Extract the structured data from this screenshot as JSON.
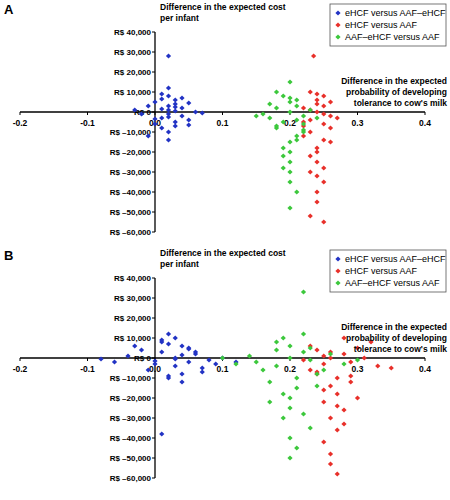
{
  "chart_data": [
    {
      "type": "scatter",
      "title": "A",
      "x_label": "Difference in the expected probability of developing tolerance to cow's milk",
      "y_label": "Difference in the expected cost per infant",
      "xlim": [
        -0.2,
        0.4
      ],
      "ylim": [
        -60000,
        40000
      ],
      "xticks": [
        -0.2,
        -0.1,
        {
          "value": 0,
          "label": "0.0"
        },
        0.1,
        0.2,
        0.3,
        0.4
      ],
      "yticks": [
        {
          "value": 40000,
          "label": "R$ 40,000"
        },
        {
          "value": 30000,
          "label": "R$ 30,000"
        },
        {
          "value": 20000,
          "label": "R$ 20,000"
        },
        {
          "value": 10000,
          "label": "R$ 10,000"
        },
        {
          "value": 0,
          "label": "R$ 0"
        },
        {
          "value": -10000,
          "label": "R$ –10,000"
        },
        {
          "value": -20000,
          "label": "R$ –20,000"
        },
        {
          "value": -30000,
          "label": "R$ –30,000"
        },
        {
          "value": -40000,
          "label": "R$ –40,000"
        },
        {
          "value": -50000,
          "label": "R$ –50,000"
        },
        {
          "value": -60000,
          "label": "R$ –60,000"
        }
      ],
      "legend": "top right",
      "marker": "diamond",
      "series": [
        {
          "name": "eHCF versus AAF–eHCF",
          "color": "#2233c4",
          "x": [
            0.02,
            0.01,
            0.03,
            0.0,
            0.04,
            0.02,
            0.05,
            -0.01,
            0.03,
            0.01,
            0.02,
            0.06,
            0.0,
            0.04,
            -0.02,
            0.03,
            0.02,
            0.01,
            0.05,
            0.02,
            0.03,
            0.0,
            0.04,
            0.01,
            0.02,
            0.03,
            -0.01,
            0.05,
            0.02,
            0.01,
            0.03,
            0.02,
            0.07,
            -0.03,
            0.02
          ],
          "values": [
            1000,
            -3000,
            4000,
            -6000,
            2000,
            -1000,
            -4000,
            3000,
            6000,
            -8000,
            8000,
            0,
            5000,
            -2000,
            -1000,
            -5000,
            -10000,
            1500,
            4500,
            28000,
            -7000,
            -3500,
            7000,
            9000,
            3000,
            500,
            -12000,
            -6500,
            -14000,
            6500,
            2500,
            12000,
            -500,
            1000,
            -2500
          ]
        },
        {
          "name": "eHCF versus AAF",
          "color": "#e8302a",
          "x": [
            0.24,
            0.23,
            0.25,
            0.22,
            0.26,
            0.24,
            0.23,
            0.25,
            0.27,
            0.24,
            0.22,
            0.25,
            0.23,
            0.26,
            0.24,
            0.25,
            0.23,
            0.24,
            0.26,
            0.22,
            0.25,
            0.24,
            0.23,
            0.25,
            0.24,
            0.26,
            0.23,
            0.24,
            0.25,
            0.24,
            0.235,
            0.22,
            0.25,
            0.24,
            0.23
          ],
          "values": [
            0,
            -4000,
            3000,
            -7000,
            -2000,
            6000,
            -10000,
            -14000,
            -3000,
            -18000,
            2000,
            8000,
            -22000,
            -8000,
            -25000,
            -1000,
            -30000,
            4000,
            5000,
            -12000,
            -35000,
            -40000,
            10000,
            -6000,
            -45000,
            -15000,
            -52000,
            -20000,
            -28000,
            9000,
            28000,
            -5000,
            -55000,
            -32000,
            1000
          ]
        },
        {
          "name": "AAF–eHCF versus AAF",
          "color": "#3cc83c",
          "x": [
            0.2,
            0.19,
            0.21,
            0.18,
            0.22,
            0.2,
            0.17,
            0.21,
            0.19,
            0.23,
            0.2,
            0.18,
            0.22,
            0.16,
            0.2,
            0.21,
            0.19,
            0.2,
            0.22,
            0.18,
            0.21,
            0.2,
            0.19,
            0.24,
            0.17,
            0.2,
            0.21,
            0.19,
            0.2,
            0.22,
            0.18,
            0.2,
            0.15,
            0.21,
            0.2
          ],
          "values": [
            0,
            -5000,
            3000,
            -8000,
            -2000,
            5000,
            -3000,
            -12000,
            8000,
            1000,
            -15000,
            2000,
            -10000,
            -1000,
            -20000,
            6000,
            -18000,
            -25000,
            -6000,
            10000,
            -4000,
            -30000,
            -22000,
            -3000,
            4000,
            -35000,
            -14000,
            -28000,
            -48000,
            -9000,
            -7000,
            15000,
            -2000,
            -40000,
            7000
          ]
        }
      ]
    },
    {
      "type": "scatter",
      "title": "B",
      "x_label": "Difference in the expected probability of developing tolerance to cow's milk",
      "y_label": "Difference in the expected cost per infant",
      "xlim": [
        -0.2,
        0.4
      ],
      "ylim": [
        -60000,
        40000
      ],
      "xticks": [
        -0.2,
        -0.1,
        {
          "value": 0,
          "label": "0.0"
        },
        0.1,
        0.2,
        0.3,
        0.4
      ],
      "yticks": [
        {
          "value": 40000,
          "label": "R$ 40,000"
        },
        {
          "value": 30000,
          "label": "R$ 30,000"
        },
        {
          "value": 20000,
          "label": "R$ 20,000"
        },
        {
          "value": 10000,
          "label": "R$ 10,000"
        },
        {
          "value": 0,
          "label": "R$ 0"
        },
        {
          "value": -10000,
          "label": "R$ –10,000"
        },
        {
          "value": -20000,
          "label": "R$ –20,000"
        },
        {
          "value": -30000,
          "label": "R$ –30,000"
        },
        {
          "value": -40000,
          "label": "R$ –40,000"
        },
        {
          "value": -50000,
          "label": "R$ –50,000"
        },
        {
          "value": -60000,
          "label": "R$ –60,000"
        }
      ],
      "legend": "top right",
      "marker": "diamond",
      "series": [
        {
          "name": "eHCF versus AAF–eHCF",
          "color": "#2233c4",
          "x": [
            0.03,
            0.01,
            0.05,
            -0.02,
            0.07,
            0.02,
            0.04,
            -0.04,
            0.06,
            0.0,
            0.08,
            0.03,
            -0.06,
            0.05,
            0.02,
            0.1,
            -0.01,
            0.04,
            0.01,
            0.06,
            0.03,
            -0.03,
            0.09,
            0.02,
            0.04,
            0.0,
            0.07,
            0.03,
            0.01,
            0.05,
            -0.08,
            0.12,
            0.02,
            0.01,
            0.04
          ],
          "values": [
            0,
            3000,
            -2000,
            4000,
            -5000,
            7000,
            -8000,
            1000,
            2000,
            -3000,
            -1000,
            10000,
            -2000,
            5000,
            -10000,
            0,
            -6000,
            -12000,
            8000,
            3000,
            -4000,
            6000,
            -3000,
            12000,
            1500,
            -1500,
            -7000,
            -500,
            -38000,
            4500,
            -500,
            -2000,
            -9000,
            9000,
            6000
          ]
        },
        {
          "name": "eHCF versus AAF",
          "color": "#e8302a",
          "x": [
            0.26,
            0.25,
            0.28,
            0.23,
            0.3,
            0.27,
            0.24,
            0.29,
            0.26,
            0.32,
            0.22,
            0.27,
            0.25,
            0.31,
            0.28,
            0.24,
            0.26,
            0.33,
            0.27,
            0.25,
            0.29,
            0.26,
            0.23,
            0.28,
            0.27,
            0.25,
            0.3,
            0.26,
            0.35,
            0.24,
            0.27,
            0.28,
            0.26,
            0.25,
            0.29
          ],
          "values": [
            0,
            -3000,
            2000,
            -6000,
            5000,
            -10000,
            4000,
            -2000,
            -14000,
            8000,
            -1000,
            -18000,
            -22000,
            0,
            -26000,
            -8000,
            -30000,
            -4000,
            -36000,
            -42000,
            -12000,
            -48000,
            6000,
            10000,
            -58000,
            -16000,
            -20000,
            3000,
            -5000,
            -7000,
            -24000,
            -33000,
            -53000,
            1000,
            -9000
          ]
        },
        {
          "name": "AAF–eHCF versus AAF",
          "color": "#3cc83c",
          "x": [
            0.2,
            0.18,
            0.22,
            0.15,
            0.24,
            0.2,
            0.17,
            0.23,
            0.19,
            0.26,
            0.12,
            0.21,
            0.2,
            0.18,
            0.25,
            0.22,
            0.14,
            0.2,
            0.28,
            0.19,
            0.21,
            0.16,
            0.23,
            0.2,
            0.22,
            0.19,
            0.24,
            0.18,
            0.1,
            0.21,
            0.2,
            0.17,
            0.23,
            0.22,
            0.3
          ],
          "values": [
            0,
            -4000,
            3000,
            -2000,
            -8000,
            6000,
            -12000,
            -1000,
            10000,
            2000,
            -3000,
            -15000,
            -20000,
            4000,
            -6000,
            12000,
            1000,
            -25000,
            -3000,
            -30000,
            -10000,
            -6000,
            -35000,
            -40000,
            33000,
            -18000,
            -14000,
            8000,
            0,
            -45000,
            -50000,
            -22000,
            5000,
            -28000,
            -1000
          ]
        }
      ]
    }
  ]
}
